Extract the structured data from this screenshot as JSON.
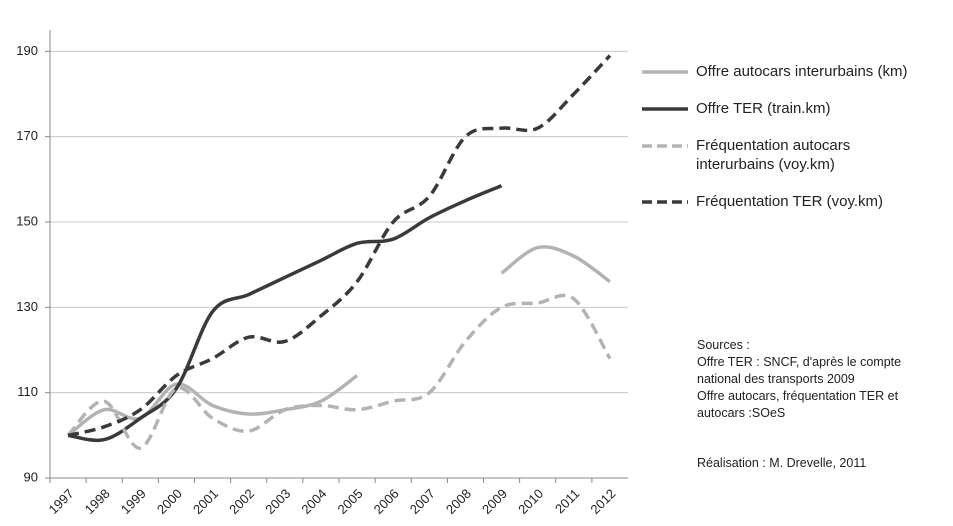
{
  "chart_data": {
    "type": "line",
    "categories": [
      "1997",
      "1998",
      "1999",
      "2000",
      "2001",
      "2002",
      "2003",
      "2004",
      "2005",
      "2006",
      "2007",
      "2008",
      "2009",
      "2010",
      "2011",
      "2012"
    ],
    "series": [
      {
        "name": "Offre autocars interurbains (km)",
        "color": "#b3b3b3",
        "dashed": false,
        "values": [
          100,
          106,
          104,
          112,
          107,
          105,
          106,
          108,
          114,
          null,
          null,
          null,
          138,
          144,
          142,
          136
        ]
      },
      {
        "name": "Offre TER (train.km)",
        "color": "#3a3a3a",
        "dashed": false,
        "values": [
          100,
          99,
          104,
          111,
          129,
          133,
          137,
          141,
          145,
          146,
          151,
          155,
          158.5,
          null,
          null,
          null
        ]
      },
      {
        "name": "Fréquentation autocars\ninterurbains (voy.km)",
        "color": "#b3b3b3",
        "dashed": true,
        "values": [
          100,
          108,
          97,
          111,
          104,
          101,
          106,
          107,
          106,
          108,
          110,
          122,
          130,
          131,
          132,
          118
        ]
      },
      {
        "name": "Fréquentation TER (voy.km)",
        "color": "#3a3a3a",
        "dashed": true,
        "values": [
          100,
          102,
          106,
          114,
          118,
          123,
          122,
          128,
          136,
          150,
          156,
          170,
          172,
          172,
          180,
          189
        ]
      }
    ],
    "ylim": [
      90,
      195
    ],
    "yticks": [
      90,
      110,
      130,
      150,
      170,
      190
    ],
    "grid": true,
    "annotations": [
      "Sources :\nOffre TER : SNCF, d'après le compte\nnational des transports 2009\nOffre autocars, fréquentation TER et\nautocars :SOeS",
      "Réalisation : M. Drevelle, 2011"
    ]
  }
}
